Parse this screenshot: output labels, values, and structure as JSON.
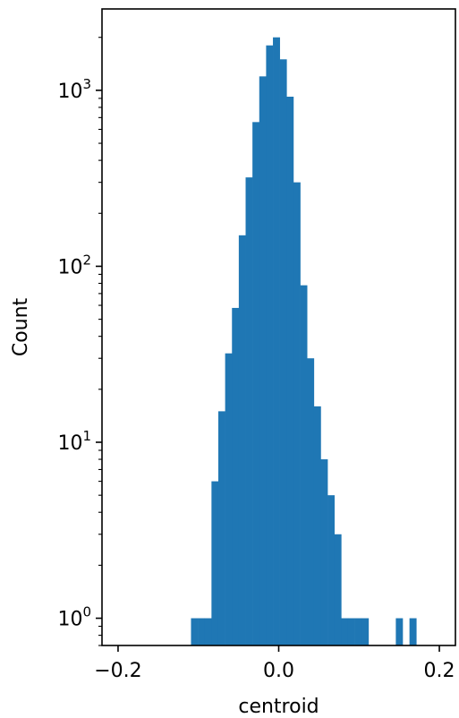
{
  "chart_data": {
    "type": "bar",
    "xlabel": "centroid",
    "ylabel": "Count",
    "yscale": "log",
    "xlim": [
      -0.22,
      0.22
    ],
    "ylim": [
      0.7,
      2900
    ],
    "grid": false,
    "color": "#1f77b4",
    "xticks": [
      {
        "value": -0.2,
        "label": "−0.2"
      },
      {
        "value": 0.0,
        "label": "0.0"
      },
      {
        "value": 0.2,
        "label": "0.2"
      }
    ],
    "yticks": [
      {
        "value": 1,
        "base": "10",
        "exp": "0"
      },
      {
        "value": 10,
        "base": "10",
        "exp": "1"
      },
      {
        "value": 100,
        "base": "10",
        "exp": "2"
      },
      {
        "value": 1000,
        "base": "10",
        "exp": "3"
      }
    ],
    "bins": [
      {
        "x0": -0.1092,
        "x1": -0.1007,
        "count": 1
      },
      {
        "x0": -0.1007,
        "x1": -0.0922,
        "count": 1
      },
      {
        "x0": -0.0922,
        "x1": -0.0837,
        "count": 1
      },
      {
        "x0": -0.0837,
        "x1": -0.0752,
        "count": 6
      },
      {
        "x0": -0.0752,
        "x1": -0.0667,
        "count": 15
      },
      {
        "x0": -0.0667,
        "x1": -0.0582,
        "count": 32
      },
      {
        "x0": -0.0582,
        "x1": -0.0497,
        "count": 58
      },
      {
        "x0": -0.0497,
        "x1": -0.0412,
        "count": 150
      },
      {
        "x0": -0.0412,
        "x1": -0.0327,
        "count": 320
      },
      {
        "x0": -0.0327,
        "x1": -0.0242,
        "count": 660
      },
      {
        "x0": -0.0242,
        "x1": -0.0157,
        "count": 1200
      },
      {
        "x0": -0.0157,
        "x1": -0.0072,
        "count": 1800
      },
      {
        "x0": -0.0072,
        "x1": 0.0013,
        "count": 2000
      },
      {
        "x0": 0.0013,
        "x1": 0.0098,
        "count": 1500
      },
      {
        "x0": 0.0098,
        "x1": 0.0183,
        "count": 920
      },
      {
        "x0": 0.0183,
        "x1": 0.0268,
        "count": 300
      },
      {
        "x0": 0.0268,
        "x1": 0.0353,
        "count": 78
      },
      {
        "x0": 0.0353,
        "x1": 0.0438,
        "count": 30
      },
      {
        "x0": 0.0438,
        "x1": 0.0523,
        "count": 16
      },
      {
        "x0": 0.0523,
        "x1": 0.0608,
        "count": 8
      },
      {
        "x0": 0.0608,
        "x1": 0.0693,
        "count": 5
      },
      {
        "x0": 0.0693,
        "x1": 0.0778,
        "count": 3
      },
      {
        "x0": 0.0778,
        "x1": 0.0863,
        "count": 1
      },
      {
        "x0": 0.0863,
        "x1": 0.0948,
        "count": 1
      },
      {
        "x0": 0.0948,
        "x1": 0.1033,
        "count": 1
      },
      {
        "x0": 0.1033,
        "x1": 0.1118,
        "count": 1
      },
      {
        "x0": 0.1458,
        "x1": 0.1543,
        "count": 1
      },
      {
        "x0": 0.1628,
        "x1": 0.1713,
        "count": 1
      }
    ]
  }
}
